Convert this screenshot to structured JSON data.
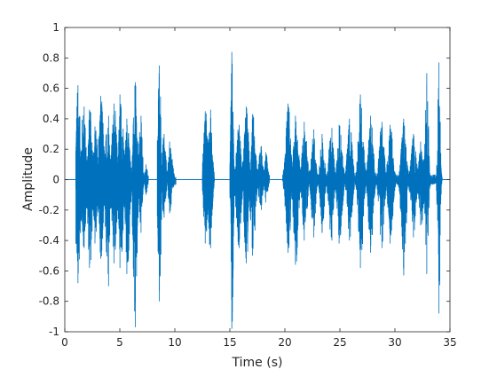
{
  "chart_data": {
    "type": "line",
    "title": "",
    "xlabel": "Time (s)",
    "ylabel": "Amplitude",
    "xlim": [
      0,
      35
    ],
    "ylim": [
      -1,
      1
    ],
    "x_ticks": [
      0,
      5,
      10,
      15,
      20,
      25,
      30,
      35
    ],
    "x_tick_labels": [
      "0",
      "5",
      "10",
      "15",
      "20",
      "25",
      "30",
      "35"
    ],
    "y_ticks": [
      1,
      0.8,
      0.6,
      0.4,
      0.2,
      0,
      -0.2,
      -0.4,
      -0.6,
      -0.8,
      -1
    ],
    "y_tick_labels": [
      "1",
      "0.8",
      "0.6",
      "0.4",
      "0.2",
      "0",
      "-0.2",
      "-0.4",
      "-0.6",
      "-0.8",
      "-1"
    ],
    "grid": false,
    "box": true,
    "line_color": "#0072BD",
    "series": [
      {
        "kind": "signal-envelope",
        "segments": [
          {
            "start": 1.0,
            "end": 7.6,
            "bursts": [
              {
                "t": 1.2,
                "w": 0.28,
                "top": 0.62,
                "bottom": -0.68
              },
              {
                "t": 1.7,
                "w": 0.3,
                "top": 0.48,
                "bottom": -0.45
              },
              {
                "t": 2.3,
                "w": 0.3,
                "top": 0.46,
                "bottom": -0.58
              },
              {
                "t": 2.8,
                "w": 0.25,
                "top": 0.35,
                "bottom": -0.42
              },
              {
                "t": 3.3,
                "w": 0.3,
                "top": 0.55,
                "bottom": -0.52
              },
              {
                "t": 3.9,
                "w": 0.28,
                "top": 0.42,
                "bottom": -0.7
              },
              {
                "t": 4.5,
                "w": 0.3,
                "top": 0.5,
                "bottom": -0.55
              },
              {
                "t": 5.1,
                "w": 0.3,
                "top": 0.56,
                "bottom": -0.58
              },
              {
                "t": 5.7,
                "w": 0.28,
                "top": 0.4,
                "bottom": -0.62
              },
              {
                "t": 6.4,
                "w": 0.25,
                "top": 0.64,
                "bottom": -0.97
              },
              {
                "t": 6.9,
                "w": 0.2,
                "top": 0.42,
                "bottom": -0.35
              },
              {
                "t": 7.4,
                "w": 0.15,
                "top": 0.1,
                "bottom": -0.1
              }
            ]
          },
          {
            "start": 8.4,
            "end": 10.1,
            "bursts": [
              {
                "t": 8.6,
                "w": 0.2,
                "top": 0.75,
                "bottom": -0.8
              },
              {
                "t": 9.0,
                "w": 0.25,
                "top": 0.3,
                "bottom": -0.25
              },
              {
                "t": 9.6,
                "w": 0.25,
                "top": 0.25,
                "bottom": -0.22
              }
            ]
          },
          {
            "start": 12.5,
            "end": 13.6,
            "bursts": [
              {
                "t": 12.8,
                "w": 0.25,
                "top": 0.45,
                "bottom": -0.42
              },
              {
                "t": 13.2,
                "w": 0.25,
                "top": 0.46,
                "bottom": -0.45
              }
            ]
          },
          {
            "start": 15.0,
            "end": 18.6,
            "bursts": [
              {
                "t": 15.2,
                "w": 0.15,
                "top": 0.84,
                "bottom": -0.98
              },
              {
                "t": 15.8,
                "w": 0.3,
                "top": 0.36,
                "bottom": -0.45
              },
              {
                "t": 16.5,
                "w": 0.3,
                "top": 0.48,
                "bottom": -0.55
              },
              {
                "t": 17.1,
                "w": 0.3,
                "top": 0.43,
                "bottom": -0.5
              },
              {
                "t": 17.8,
                "w": 0.25,
                "top": 0.22,
                "bottom": -0.2
              },
              {
                "t": 18.3,
                "w": 0.2,
                "top": 0.18,
                "bottom": -0.15
              }
            ]
          },
          {
            "start": 19.8,
            "end": 34.3,
            "bursts": [
              {
                "t": 20.3,
                "w": 0.3,
                "top": 0.5,
                "bottom": -0.48
              },
              {
                "t": 21.0,
                "w": 0.3,
                "top": 0.42,
                "bottom": -0.56
              },
              {
                "t": 21.8,
                "w": 0.3,
                "top": 0.38,
                "bottom": -0.4
              },
              {
                "t": 22.6,
                "w": 0.25,
                "top": 0.33,
                "bottom": -0.38
              },
              {
                "t": 23.4,
                "w": 0.25,
                "top": 0.3,
                "bottom": -0.35
              },
              {
                "t": 24.2,
                "w": 0.3,
                "top": 0.34,
                "bottom": -0.4
              },
              {
                "t": 25.0,
                "w": 0.3,
                "top": 0.36,
                "bottom": -0.42
              },
              {
                "t": 25.9,
                "w": 0.3,
                "top": 0.4,
                "bottom": -0.4
              },
              {
                "t": 26.9,
                "w": 0.3,
                "top": 0.56,
                "bottom": -0.58
              },
              {
                "t": 27.8,
                "w": 0.3,
                "top": 0.42,
                "bottom": -0.48
              },
              {
                "t": 28.8,
                "w": 0.3,
                "top": 0.38,
                "bottom": -0.45
              },
              {
                "t": 29.6,
                "w": 0.3,
                "top": 0.36,
                "bottom": -0.42
              },
              {
                "t": 30.8,
                "w": 0.3,
                "top": 0.4,
                "bottom": -0.63
              },
              {
                "t": 31.7,
                "w": 0.3,
                "top": 0.3,
                "bottom": -0.38
              },
              {
                "t": 32.4,
                "w": 0.3,
                "top": 0.25,
                "bottom": -0.3
              },
              {
                "t": 32.9,
                "w": 0.2,
                "top": 0.7,
                "bottom": -0.62
              },
              {
                "t": 34.0,
                "w": 0.15,
                "top": 0.77,
                "bottom": -0.88
              }
            ]
          }
        ]
      }
    ]
  }
}
